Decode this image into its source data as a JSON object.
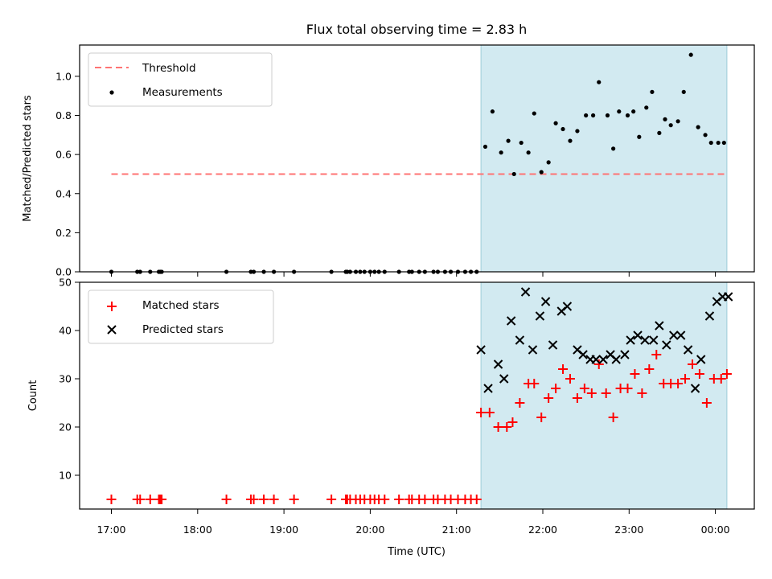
{
  "title": "Flux total observing time = 2.83 h",
  "colors": {
    "shade": "#add8e6",
    "threshold": "#ff7373",
    "measurement": "#000000",
    "matched": "#ff0000",
    "predicted": "#000000"
  },
  "chart_data": [
    {
      "type": "scatter",
      "ylabel": "Matched/Predicted stars",
      "xlabel": "",
      "ylim": [
        0,
        1.16
      ],
      "yticks": [
        "0.0",
        "0.2",
        "0.4",
        "0.6",
        "0.8",
        "1.0"
      ],
      "grid": false,
      "legend_position": "top-left",
      "shaded_span": [
        "21:17",
        "24:08"
      ],
      "threshold": {
        "name": "Threshold",
        "value": 0.5,
        "from": "17:00",
        "to": "24:08",
        "style": "dashed"
      },
      "series": [
        {
          "name": "Measurements",
          "x": [
            "17:00",
            "17:18",
            "17:20",
            "17:27",
            "17:33",
            "17:34",
            "17:35",
            "18:20",
            "18:37",
            "18:39",
            "18:46",
            "18:53",
            "19:07",
            "19:33",
            "19:43",
            "19:44",
            "19:46",
            "19:50",
            "19:53",
            "19:56",
            "20:00",
            "20:03",
            "20:06",
            "20:10",
            "20:20",
            "20:27",
            "20:29",
            "20:34",
            "20:38",
            "20:44",
            "20:47",
            "20:52",
            "20:56",
            "21:01",
            "21:06",
            "21:10",
            "21:14",
            "21:20",
            "21:25",
            "21:31",
            "21:36",
            "21:40",
            "21:45",
            "21:50",
            "21:54",
            "21:59",
            "22:04",
            "22:09",
            "22:14",
            "22:19",
            "22:24",
            "22:30",
            "22:35",
            "22:39",
            "22:45",
            "22:49",
            "22:53",
            "22:59",
            "23:03",
            "23:07",
            "23:12",
            "23:16",
            "23:21",
            "23:25",
            "23:29",
            "23:34",
            "23:38",
            "23:43",
            "23:48",
            "23:53",
            "23:57",
            "00:02",
            "00:06"
          ],
          "y": [
            0,
            0,
            0,
            0,
            0,
            0,
            0,
            0,
            0,
            0,
            0,
            0,
            0,
            0,
            0,
            0,
            0,
            0,
            0,
            0,
            0,
            0,
            0,
            0,
            0,
            0,
            0,
            0,
            0,
            0,
            0,
            0,
            0,
            0,
            0,
            0,
            0,
            0.64,
            0.82,
            0.61,
            0.67,
            0.5,
            0.66,
            0.61,
            0.81,
            0.51,
            0.56,
            0.76,
            0.73,
            0.67,
            0.72,
            0.8,
            0.8,
            0.97,
            0.8,
            0.63,
            0.82,
            0.8,
            0.82,
            0.69,
            0.84,
            0.92,
            0.71,
            0.78,
            0.75,
            0.77,
            0.92,
            1.11,
            0.74,
            0.7,
            0.66,
            0.66,
            0.66
          ]
        }
      ]
    },
    {
      "type": "scatter",
      "ylabel": "Count",
      "xlabel": "Time (UTC)",
      "ylim": [
        3,
        50
      ],
      "yticks": [
        "10",
        "20",
        "30",
        "40",
        "50"
      ],
      "xticks": [
        "17:00",
        "18:00",
        "19:00",
        "20:00",
        "21:00",
        "22:00",
        "23:00",
        "00:00"
      ],
      "grid": false,
      "legend_position": "top-left",
      "shaded_span": [
        "21:17",
        "24:08"
      ],
      "series": [
        {
          "name": "Matched stars",
          "marker": "plus",
          "x": [
            "17:00",
            "17:18",
            "17:20",
            "17:27",
            "17:33",
            "17:34",
            "17:35",
            "18:20",
            "18:37",
            "18:39",
            "18:46",
            "18:53",
            "19:07",
            "19:33",
            "19:43",
            "19:44",
            "19:46",
            "19:50",
            "19:53",
            "19:56",
            "20:00",
            "20:03",
            "20:06",
            "20:10",
            "20:20",
            "20:27",
            "20:29",
            "20:34",
            "20:38",
            "20:44",
            "20:47",
            "20:52",
            "20:56",
            "21:01",
            "21:06",
            "21:10",
            "21:14",
            "21:17",
            "21:23",
            "21:29",
            "21:35",
            "21:39",
            "21:44",
            "21:50",
            "21:54",
            "21:59",
            "22:04",
            "22:09",
            "22:14",
            "22:19",
            "22:24",
            "22:29",
            "22:34",
            "22:39",
            "22:44",
            "22:49",
            "22:54",
            "22:59",
            "23:04",
            "23:09",
            "23:14",
            "23:19",
            "23:24",
            "23:29",
            "23:34",
            "23:39",
            "23:44",
            "23:49",
            "23:54",
            "23:59",
            "00:04",
            "00:08"
          ],
          "y": [
            5,
            5,
            5,
            5,
            5,
            5,
            5,
            5,
            5,
            5,
            5,
            5,
            5,
            5,
            5,
            5,
            5,
            5,
            5,
            5,
            5,
            5,
            5,
            5,
            5,
            5,
            5,
            5,
            5,
            5,
            5,
            5,
            5,
            5,
            5,
            5,
            5,
            23,
            23,
            20,
            20,
            21,
            25,
            29,
            29,
            22,
            26,
            28,
            32,
            30,
            26,
            28,
            27,
            33,
            27,
            22,
            28,
            28,
            31,
            27,
            32,
            35,
            29,
            29,
            29,
            30,
            33,
            31,
            25,
            30,
            30,
            31
          ]
        },
        {
          "name": "Predicted stars",
          "marker": "x",
          "x": [
            "21:17",
            "21:22",
            "21:29",
            "21:33",
            "21:38",
            "21:44",
            "21:48",
            "21:53",
            "21:58",
            "22:02",
            "22:07",
            "22:13",
            "22:17",
            "22:24",
            "22:28",
            "22:33",
            "22:37",
            "22:42",
            "22:47",
            "22:51",
            "22:57",
            "23:01",
            "23:06",
            "23:11",
            "23:17",
            "23:21",
            "23:26",
            "23:31",
            "23:36",
            "23:41",
            "23:46",
            "23:50",
            "23:56",
            "00:01",
            "00:05",
            "00:09"
          ],
          "y": [
            36,
            28,
            33,
            30,
            42,
            38,
            48,
            36,
            43,
            46,
            37,
            44,
            45,
            36,
            35,
            34,
            34,
            34,
            35,
            34,
            35,
            38,
            39,
            38,
            38,
            41,
            37,
            39,
            39,
            36,
            28,
            34,
            43,
            46,
            47,
            47
          ]
        }
      ]
    }
  ]
}
